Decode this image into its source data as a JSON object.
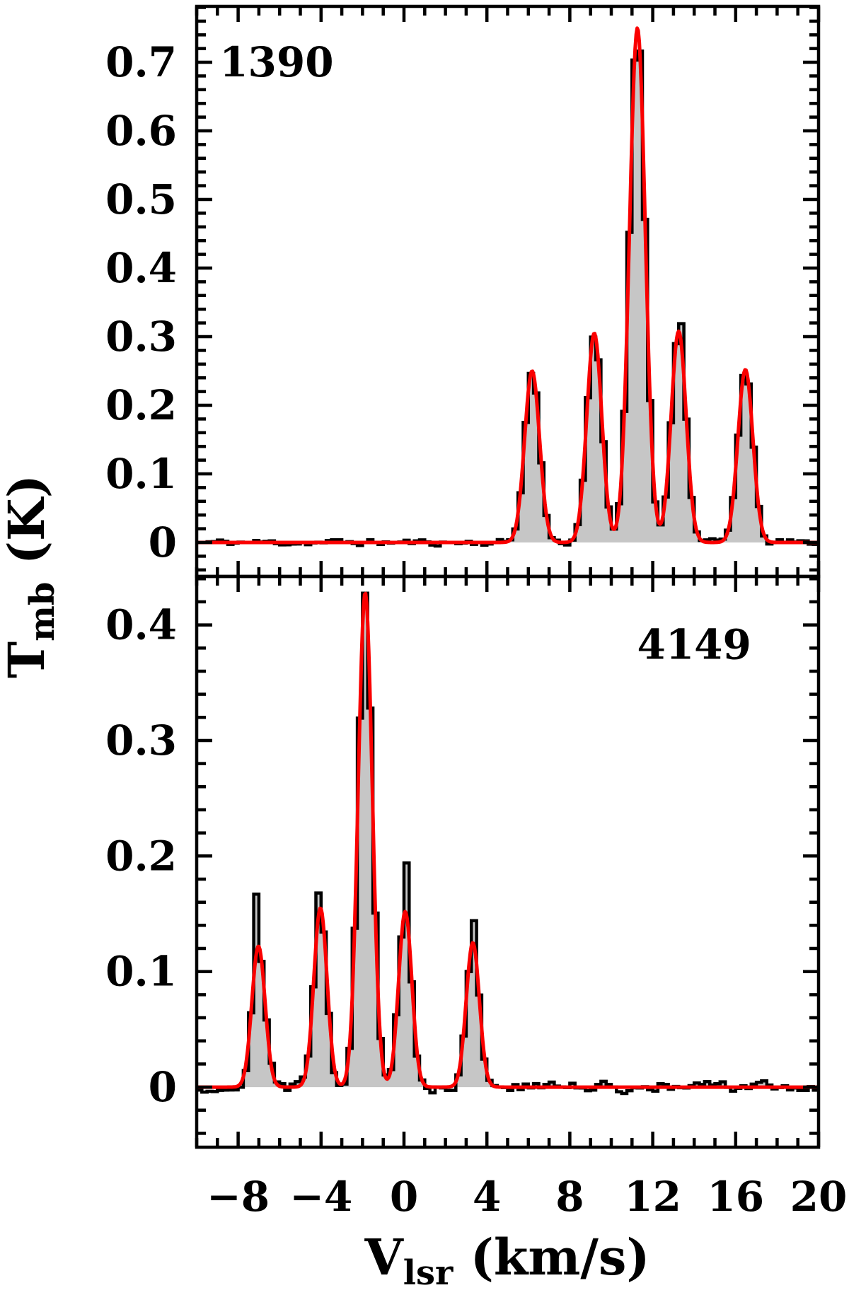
{
  "figure": {
    "background": "#ffffff",
    "axis_color": "#000000",
    "histogram_color": "#000000",
    "fill_color": "#c6c6c6",
    "fit_color": "#fa0000",
    "ylabel": {
      "main": "T",
      "sub": "mb",
      "rest": " (K)"
    },
    "xlabel": {
      "main": "V",
      "sub": "lsr",
      "rest": " (km/s)"
    },
    "x_tick_labels": [
      {
        "v": -8,
        "label": "−8"
      },
      {
        "v": -4,
        "label": "−4"
      },
      {
        "v": 0,
        "label": "0"
      },
      {
        "v": 4,
        "label": "4"
      },
      {
        "v": 8,
        "label": "8"
      },
      {
        "v": 12,
        "label": "12"
      },
      {
        "v": 16,
        "label": "16"
      },
      {
        "v": 20,
        "label": "20"
      }
    ]
  },
  "chart_data": [
    {
      "type": "line",
      "title": "",
      "panel_label": "1390",
      "label_anchor": {
        "v": -8.9,
        "t": 0.7,
        "align": "start"
      },
      "xlabel": "V_lsr (km/s)",
      "ylabel": "T_mb (K)",
      "x_range": [
        -10,
        20
      ],
      "y_range": [
        -0.0495,
        0.7815
      ],
      "x_major_ticks": [
        -8,
        -4,
        0,
        4,
        8,
        12,
        16,
        20
      ],
      "x_minor_step_kms": 1,
      "y_major_step_K": 0.1,
      "y_minor_step_K": 0.02,
      "y_tick_labels": [
        {
          "v": 0,
          "label": "0"
        },
        {
          "v": 0.1,
          "label": "0.1"
        },
        {
          "v": 0.2,
          "label": "0.2"
        },
        {
          "v": 0.3,
          "label": "0.3"
        },
        {
          "v": 0.4,
          "label": "0.4"
        },
        {
          "v": 0.5,
          "label": "0.5"
        },
        {
          "v": 0.6,
          "label": "0.6"
        },
        {
          "v": 0.7,
          "label": "0.7"
        }
      ],
      "grid": false,
      "legend": false,
      "channel_width_kms": 0.25,
      "noise_rms_K": 0.0042,
      "noise_seed": 11,
      "baseline_K": 0,
      "fit_components": [
        {
          "v_center_kms": 6.18,
          "t_peak_K": 0.25,
          "fwhm_kms": 0.85
        },
        {
          "v_center_kms": 9.18,
          "t_peak_K": 0.305,
          "fwhm_kms": 0.85
        },
        {
          "v_center_kms": 11.26,
          "t_peak_K": 0.75,
          "fwhm_kms": 0.9
        },
        {
          "v_center_kms": 13.25,
          "t_peak_K": 0.308,
          "fwhm_kms": 0.85,
          "obs_spike_K": 0.319
        },
        {
          "v_center_kms": 16.47,
          "t_peak_K": 0.252,
          "fwhm_kms": 0.85
        }
      ]
    },
    {
      "type": "line",
      "title": "",
      "panel_label": "4149",
      "label_anchor": {
        "v": 14.0,
        "t": 0.383,
        "align": "middle"
      },
      "xlabel": "V_lsr (km/s)",
      "ylabel": "T_mb (K)",
      "x_range": [
        -10,
        20
      ],
      "y_range": [
        -0.052,
        0.442
      ],
      "x_major_ticks": [
        -8,
        -4,
        0,
        4,
        8,
        12,
        16,
        20
      ],
      "x_minor_step_kms": 1,
      "y_major_step_K": 0.1,
      "y_minor_step_K": 0.02,
      "y_tick_labels": [
        {
          "v": 0,
          "label": "0"
        },
        {
          "v": 0.1,
          "label": "0.1"
        },
        {
          "v": 0.2,
          "label": "0.2"
        },
        {
          "v": 0.3,
          "label": "0.3"
        },
        {
          "v": 0.4,
          "label": "0.4"
        }
      ],
      "grid": false,
      "legend": false,
      "channel_width_kms": 0.25,
      "noise_rms_K": 0.0045,
      "noise_seed": 29,
      "baseline_K": 0,
      "fit_components": [
        {
          "v_center_kms": -7.02,
          "t_peak_K": 0.122,
          "fwhm_kms": 0.75,
          "obs_spike_K": 0.167
        },
        {
          "v_center_kms": -4.03,
          "t_peak_K": 0.155,
          "fwhm_kms": 0.75,
          "obs_spike_K": 0.168
        },
        {
          "v_center_kms": -1.87,
          "t_peak_K": 0.428,
          "fwhm_kms": 0.8
        },
        {
          "v_center_kms": 0.06,
          "t_peak_K": 0.152,
          "fwhm_kms": 0.75,
          "obs_spike_K": 0.194
        },
        {
          "v_center_kms": 3.32,
          "t_peak_K": 0.125,
          "fwhm_kms": 0.75,
          "obs_spike_K": 0.144
        }
      ]
    }
  ]
}
